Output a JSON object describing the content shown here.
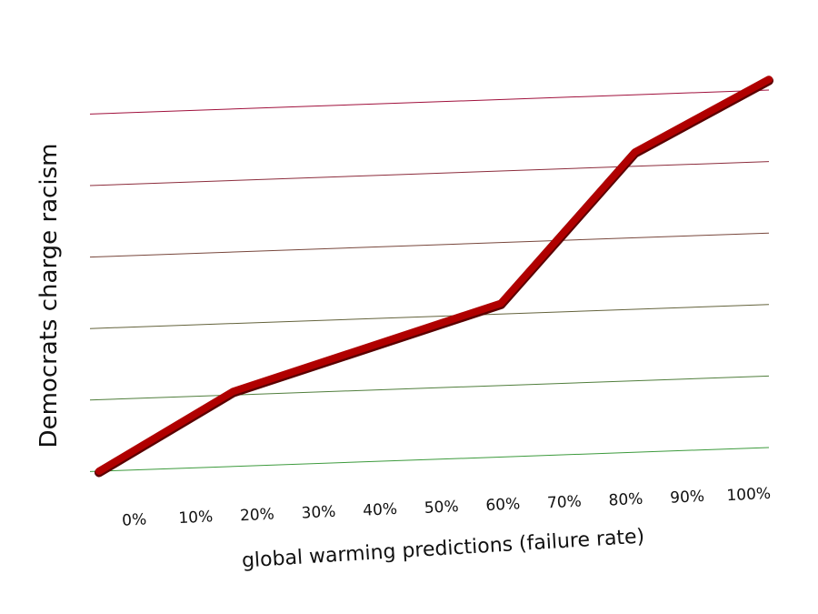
{
  "chart_data": {
    "type": "line",
    "title": "",
    "xlabel": "global warming predictions (failure rate)",
    "ylabel": "Democrats charge racism",
    "categories": [
      "0%",
      "10%",
      "20%",
      "30%",
      "40%",
      "50%",
      "60%",
      "70%",
      "80%",
      "90%",
      "100%"
    ],
    "x": [
      0,
      20,
      60,
      80,
      100
    ],
    "series": [
      {
        "values": [
          0,
          1.05,
          2.15,
          4.2,
          5.15
        ]
      }
    ],
    "ylim": [
      0,
      5
    ],
    "y_gridlines": 6,
    "grid": true,
    "legend": "none",
    "colors": {
      "line": "#b00000",
      "grid_low": "#3c9a3c",
      "grid_high": "#a0103c"
    }
  }
}
